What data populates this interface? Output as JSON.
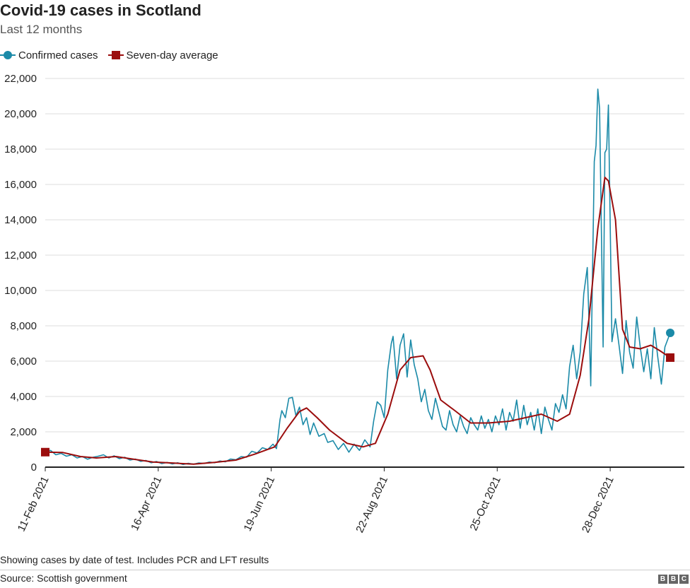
{
  "title": "Covid-19 cases in Scotland",
  "subtitle": "Last 12 months",
  "footnote": "Showing cases by date of test. Includes PCR and LFT results",
  "source": "Source: Scottish government",
  "logo": [
    "B",
    "B",
    "C"
  ],
  "colors": {
    "confirmed": "#1b8aa8",
    "average": "#9b0d0d",
    "grid": "#dddddd",
    "axis": "#222222"
  },
  "chart_data": {
    "type": "line",
    "xlabel": "",
    "ylabel": "",
    "ylim": [
      0,
      22000
    ],
    "yticks": [
      0,
      2000,
      4000,
      6000,
      8000,
      10000,
      12000,
      14000,
      16000,
      18000,
      20000,
      22000
    ],
    "ytick_labels": [
      "0",
      "2,000",
      "4,000",
      "6,000",
      "8,000",
      "10,000",
      "12,000",
      "14,000",
      "16,000",
      "18,000",
      "20,000",
      "22,000"
    ],
    "xlim": [
      "2021-02-11",
      "2022-02-08"
    ],
    "xticks": [
      "2021-02-11",
      "2021-04-16",
      "2021-06-19",
      "2021-08-22",
      "2021-10-25",
      "2021-12-28"
    ],
    "xtick_labels": [
      "11-Feb 2021",
      "16-Apr 2021",
      "19-Jun 2021",
      "22-Aug 2021",
      "25-Oct 2021",
      "28-Dec 2021"
    ],
    "grid": true,
    "legend_position": "top-left",
    "series": [
      {
        "name": "Confirmed cases",
        "marker": "circle",
        "color": "#1b8aa8",
        "points": [
          [
            "2021-02-11",
            850
          ],
          [
            "2021-02-14",
            950
          ],
          [
            "2021-02-17",
            700
          ],
          [
            "2021-02-20",
            780
          ],
          [
            "2021-02-23",
            620
          ],
          [
            "2021-02-26",
            700
          ],
          [
            "2021-03-01",
            520
          ],
          [
            "2021-03-04",
            600
          ],
          [
            "2021-03-07",
            450
          ],
          [
            "2021-03-10",
            560
          ],
          [
            "2021-03-13",
            620
          ],
          [
            "2021-03-16",
            700
          ],
          [
            "2021-03-19",
            520
          ],
          [
            "2021-03-22",
            640
          ],
          [
            "2021-03-25",
            480
          ],
          [
            "2021-03-28",
            560
          ],
          [
            "2021-03-31",
            400
          ],
          [
            "2021-04-03",
            460
          ],
          [
            "2021-04-06",
            330
          ],
          [
            "2021-04-09",
            380
          ],
          [
            "2021-04-12",
            250
          ],
          [
            "2021-04-15",
            320
          ],
          [
            "2021-04-18",
            200
          ],
          [
            "2021-04-21",
            270
          ],
          [
            "2021-04-24",
            180
          ],
          [
            "2021-04-27",
            250
          ],
          [
            "2021-04-30",
            150
          ],
          [
            "2021-05-03",
            220
          ],
          [
            "2021-05-06",
            170
          ],
          [
            "2021-05-09",
            240
          ],
          [
            "2021-05-12",
            210
          ],
          [
            "2021-05-15",
            290
          ],
          [
            "2021-05-18",
            250
          ],
          [
            "2021-05-21",
            350
          ],
          [
            "2021-05-24",
            300
          ],
          [
            "2021-05-27",
            460
          ],
          [
            "2021-05-30",
            420
          ],
          [
            "2021-06-02",
            600
          ],
          [
            "2021-06-05",
            560
          ],
          [
            "2021-06-08",
            900
          ],
          [
            "2021-06-11",
            800
          ],
          [
            "2021-06-14",
            1100
          ],
          [
            "2021-06-17",
            1000
          ],
          [
            "2021-06-20",
            1300
          ],
          [
            "2021-06-22",
            1050
          ],
          [
            "2021-06-24",
            2700
          ],
          [
            "2021-06-25",
            3200
          ],
          [
            "2021-06-27",
            2800
          ],
          [
            "2021-06-29",
            3900
          ],
          [
            "2021-07-01",
            3950
          ],
          [
            "2021-07-03",
            2900
          ],
          [
            "2021-07-05",
            3400
          ],
          [
            "2021-07-07",
            2400
          ],
          [
            "2021-07-09",
            2800
          ],
          [
            "2021-07-11",
            1850
          ],
          [
            "2021-07-13",
            2500
          ],
          [
            "2021-07-16",
            1750
          ],
          [
            "2021-07-19",
            1900
          ],
          [
            "2021-07-21",
            1400
          ],
          [
            "2021-07-24",
            1500
          ],
          [
            "2021-07-27",
            1000
          ],
          [
            "2021-07-30",
            1350
          ],
          [
            "2021-08-02",
            850
          ],
          [
            "2021-08-05",
            1300
          ],
          [
            "2021-08-08",
            950
          ],
          [
            "2021-08-11",
            1550
          ],
          [
            "2021-08-14",
            1150
          ],
          [
            "2021-08-16",
            2600
          ],
          [
            "2021-08-18",
            3700
          ],
          [
            "2021-08-20",
            3500
          ],
          [
            "2021-08-22",
            2800
          ],
          [
            "2021-08-24",
            5500
          ],
          [
            "2021-08-26",
            7000
          ],
          [
            "2021-08-27",
            7400
          ],
          [
            "2021-08-29",
            5000
          ],
          [
            "2021-08-31",
            6900
          ],
          [
            "2021-09-02",
            7550
          ],
          [
            "2021-09-04",
            5100
          ],
          [
            "2021-09-06",
            7200
          ],
          [
            "2021-09-08",
            5800
          ],
          [
            "2021-09-10",
            5000
          ],
          [
            "2021-09-12",
            3700
          ],
          [
            "2021-09-14",
            4400
          ],
          [
            "2021-09-16",
            3200
          ],
          [
            "2021-09-18",
            2700
          ],
          [
            "2021-09-20",
            3900
          ],
          [
            "2021-09-22",
            3100
          ],
          [
            "2021-09-24",
            2300
          ],
          [
            "2021-09-26",
            2100
          ],
          [
            "2021-09-28",
            3200
          ],
          [
            "2021-09-30",
            2400
          ],
          [
            "2021-10-02",
            2000
          ],
          [
            "2021-10-04",
            2900
          ],
          [
            "2021-10-06",
            2300
          ],
          [
            "2021-10-08",
            1900
          ],
          [
            "2021-10-10",
            2800
          ],
          [
            "2021-10-12",
            2400
          ],
          [
            "2021-10-14",
            2100
          ],
          [
            "2021-10-16",
            2900
          ],
          [
            "2021-10-18",
            2200
          ],
          [
            "2021-10-20",
            2700
          ],
          [
            "2021-10-22",
            2000
          ],
          [
            "2021-10-24",
            2900
          ],
          [
            "2021-10-26",
            2400
          ],
          [
            "2021-10-28",
            3300
          ],
          [
            "2021-10-30",
            2100
          ],
          [
            "2021-11-01",
            3100
          ],
          [
            "2021-11-03",
            2600
          ],
          [
            "2021-11-05",
            3800
          ],
          [
            "2021-11-07",
            2200
          ],
          [
            "2021-11-09",
            3500
          ],
          [
            "2021-11-11",
            2400
          ],
          [
            "2021-11-13",
            3100
          ],
          [
            "2021-11-15",
            2100
          ],
          [
            "2021-11-17",
            3300
          ],
          [
            "2021-11-19",
            1900
          ],
          [
            "2021-11-21",
            3400
          ],
          [
            "2021-11-23",
            2700
          ],
          [
            "2021-11-25",
            2100
          ],
          [
            "2021-11-27",
            3600
          ],
          [
            "2021-11-29",
            3100
          ],
          [
            "2021-12-01",
            4100
          ],
          [
            "2021-12-03",
            3300
          ],
          [
            "2021-12-05",
            5700
          ],
          [
            "2021-12-07",
            6900
          ],
          [
            "2021-12-09",
            5000
          ],
          [
            "2021-12-11",
            6500
          ],
          [
            "2021-12-13",
            9800
          ],
          [
            "2021-12-15",
            11300
          ],
          [
            "2021-12-16",
            8300
          ],
          [
            "2021-12-17",
            4600
          ],
          [
            "2021-12-19",
            17300
          ],
          [
            "2021-12-20",
            18200
          ],
          [
            "2021-12-21",
            21400
          ],
          [
            "2021-12-22",
            20300
          ],
          [
            "2021-12-24",
            6800
          ],
          [
            "2021-12-25",
            17800
          ],
          [
            "2021-12-26",
            18000
          ],
          [
            "2021-12-27",
            20500
          ],
          [
            "2021-12-29",
            7100
          ],
          [
            "2021-12-31",
            8400
          ],
          [
            "2022-01-02",
            6900
          ],
          [
            "2022-01-04",
            5300
          ],
          [
            "2022-01-06",
            8300
          ],
          [
            "2022-01-08",
            6500
          ],
          [
            "2022-01-10",
            5600
          ],
          [
            "2022-01-12",
            8500
          ],
          [
            "2022-01-14",
            6800
          ],
          [
            "2022-01-16",
            5400
          ],
          [
            "2022-01-18",
            6700
          ],
          [
            "2022-01-20",
            5000
          ],
          [
            "2022-01-22",
            7900
          ],
          [
            "2022-01-24",
            6200
          ],
          [
            "2022-01-26",
            4700
          ],
          [
            "2022-01-28",
            6800
          ],
          [
            "2022-01-31",
            7600
          ]
        ]
      },
      {
        "name": "Seven-day average",
        "marker": "square",
        "color": "#9b0d0d",
        "points": [
          [
            "2021-02-11",
            850
          ],
          [
            "2021-02-21",
            830
          ],
          [
            "2021-03-03",
            600
          ],
          [
            "2021-03-12",
            520
          ],
          [
            "2021-03-23",
            600
          ],
          [
            "2021-04-02",
            450
          ],
          [
            "2021-04-13",
            290
          ],
          [
            "2021-04-25",
            230
          ],
          [
            "2021-05-06",
            170
          ],
          [
            "2021-05-18",
            270
          ],
          [
            "2021-05-30",
            400
          ],
          [
            "2021-06-10",
            750
          ],
          [
            "2021-06-21",
            1150
          ],
          [
            "2021-06-28",
            2200
          ],
          [
            "2021-07-05",
            3150
          ],
          [
            "2021-07-09",
            3350
          ],
          [
            "2021-07-15",
            2800
          ],
          [
            "2021-07-22",
            2100
          ],
          [
            "2021-08-01",
            1350
          ],
          [
            "2021-08-10",
            1150
          ],
          [
            "2021-08-17",
            1350
          ],
          [
            "2021-08-24",
            3000
          ],
          [
            "2021-08-31",
            5500
          ],
          [
            "2021-09-06",
            6200
          ],
          [
            "2021-09-13",
            6300
          ],
          [
            "2021-09-17",
            5500
          ],
          [
            "2021-09-23",
            3800
          ],
          [
            "2021-10-01",
            3200
          ],
          [
            "2021-10-10",
            2500
          ],
          [
            "2021-10-20",
            2500
          ],
          [
            "2021-11-01",
            2600
          ],
          [
            "2021-11-10",
            2800
          ],
          [
            "2021-11-19",
            3000
          ],
          [
            "2021-11-28",
            2600
          ],
          [
            "2021-12-05",
            3000
          ],
          [
            "2021-12-11",
            5200
          ],
          [
            "2021-12-16",
            8400
          ],
          [
            "2021-12-21",
            13500
          ],
          [
            "2021-12-25",
            16400
          ],
          [
            "2021-12-27",
            16200
          ],
          [
            "2021-12-31",
            14000
          ],
          [
            "2022-01-04",
            7800
          ],
          [
            "2022-01-08",
            6800
          ],
          [
            "2022-01-14",
            6700
          ],
          [
            "2022-01-20",
            6900
          ],
          [
            "2022-01-25",
            6600
          ],
          [
            "2022-01-31",
            6200
          ]
        ]
      }
    ]
  }
}
